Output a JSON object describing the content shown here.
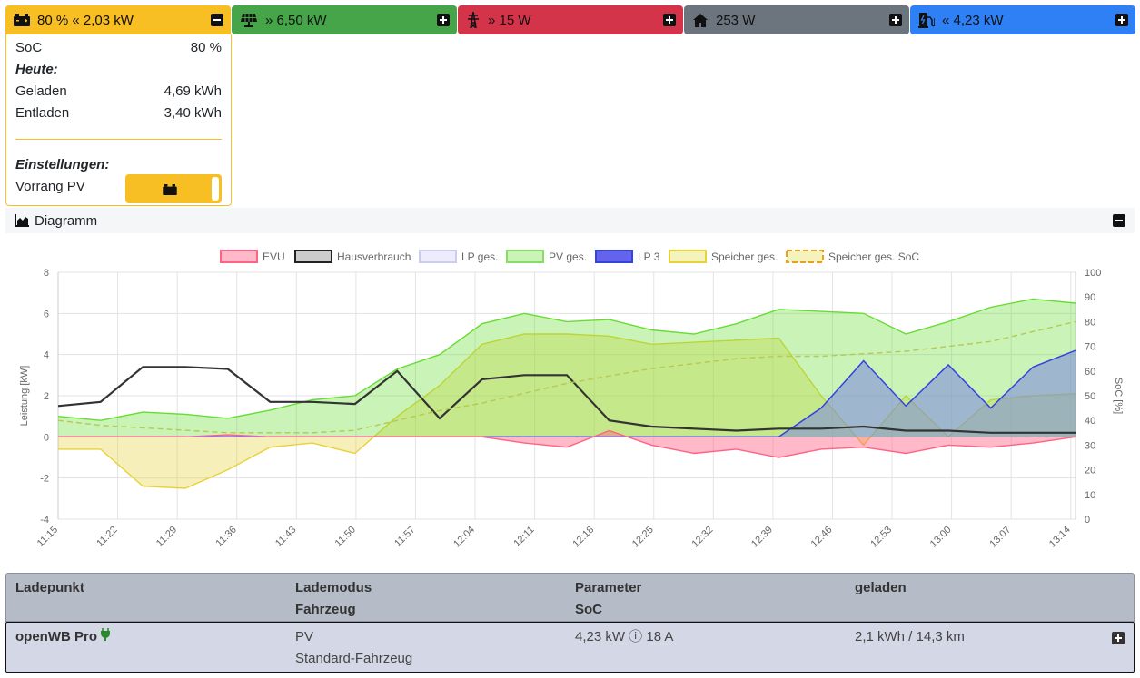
{
  "tiles": {
    "battery": {
      "value": "80 % « 2,03 kW",
      "color": "#f7bf23"
    },
    "pv": {
      "value": "» 6,50 kW",
      "color": "#45a548"
    },
    "grid": {
      "value": "» 15 W",
      "color": "#d43449"
    },
    "house": {
      "value": "253 W",
      "color": "#6c757d"
    },
    "charge": {
      "value": "« 4,23 kW",
      "color": "#2f7ff5"
    }
  },
  "battery_panel": {
    "soc_label": "SoC",
    "soc_value": "80 %",
    "today_heading": "Heute:",
    "charged_label": "Geladen",
    "charged_value": "4,69 kWh",
    "discharged_label": "Entladen",
    "discharged_value": "3,40 kWh",
    "settings_heading": "Einstellungen:",
    "priority_label": "Vorrang PV",
    "priority_toggle_on": true
  },
  "diagram": {
    "title": "Diagramm"
  },
  "chart_data": {
    "type": "area",
    "legend": [
      "EVU",
      "Hausverbrauch",
      "LP ges.",
      "PV ges.",
      "LP 3",
      "Speicher ges.",
      "Speicher ges. SoC"
    ],
    "legend_position": "top",
    "grid": true,
    "ylabel": "Leistung [kW]",
    "y2label": "SoC [%]",
    "ylim": [
      -4,
      8
    ],
    "y2lim": [
      0,
      100
    ],
    "yticks": [
      "8",
      "6",
      "4",
      "2",
      "0",
      "-2",
      "-4"
    ],
    "y2ticks": [
      "100",
      "90",
      "80",
      "70",
      "60",
      "50",
      "40",
      "30",
      "20",
      "10",
      "0"
    ],
    "x_ticks": [
      "11:15",
      "11:22",
      "11:29",
      "11:36",
      "11:43",
      "11:50",
      "11:57",
      "12:04",
      "12:11",
      "12:18",
      "12:25",
      "12:32",
      "12:39",
      "12:46",
      "12:53",
      "13:00",
      "13:07",
      "13:14"
    ],
    "x_minutes": [
      0,
      5,
      10,
      15,
      20,
      25,
      30,
      35,
      40,
      45,
      50,
      55,
      60,
      65,
      70,
      75,
      80,
      85,
      90,
      95,
      100,
      105,
      110,
      115,
      120
    ],
    "series": [
      {
        "name": "EVU",
        "color": "#ff6384",
        "values": [
          0,
          0,
          0,
          0,
          0.1,
          0,
          0,
          0,
          0,
          0,
          0,
          -0.3,
          -0.5,
          0.3,
          -0.4,
          -0.8,
          -0.6,
          -1.0,
          -0.6,
          -0.5,
          -0.8,
          -0.4,
          -0.5,
          -0.3,
          0
        ]
      },
      {
        "name": "Hausverbrauch",
        "color": "#333333",
        "values": [
          1.5,
          1.7,
          3.4,
          3.4,
          3.3,
          1.7,
          1.7,
          1.6,
          3.2,
          0.9,
          2.8,
          3.0,
          3.0,
          0.8,
          0.5,
          0.4,
          0.3,
          0.4,
          0.4,
          0.5,
          0.3,
          0.3,
          0.2,
          0.2,
          0.2
        ]
      },
      {
        "name": "LP ges.",
        "color": "#6c5ce7",
        "values": [
          0,
          0,
          0,
          0,
          0,
          0,
          0,
          0,
          0,
          0,
          0,
          0,
          0,
          0,
          0,
          0,
          0,
          0,
          1.4,
          3.7,
          1.5,
          3.5,
          1.4,
          3.4,
          4.2
        ]
      },
      {
        "name": "PV ges.",
        "color": "#66dd33",
        "values": [
          1.0,
          0.8,
          1.2,
          1.1,
          0.9,
          1.3,
          1.8,
          2.0,
          3.3,
          4.0,
          5.5,
          6.0,
          5.6,
          5.7,
          5.2,
          5.0,
          5.5,
          6.2,
          6.1,
          6.0,
          5.0,
          5.6,
          6.3,
          6.7,
          6.5
        ]
      },
      {
        "name": "LP 3",
        "color": "#3344dd",
        "values": [
          0,
          0,
          0,
          0,
          0,
          0,
          0,
          0,
          0,
          0,
          0,
          0,
          0,
          0,
          0,
          0,
          0,
          0,
          1.4,
          3.7,
          1.5,
          3.5,
          1.4,
          3.4,
          4.2
        ]
      },
      {
        "name": "Speicher ges.",
        "color": "#e8d23a",
        "values": [
          -0.6,
          -0.6,
          -2.4,
          -2.5,
          -1.6,
          -0.5,
          -0.3,
          -0.8,
          1.0,
          2.5,
          4.5,
          5.0,
          5.0,
          4.9,
          4.5,
          4.6,
          4.7,
          4.8,
          2.0,
          -0.4,
          2.0,
          0,
          1.8,
          2.0,
          2.1
        ]
      },
      {
        "name": "Speicher ges. SoC",
        "color": "#e8a020",
        "values": [
          40,
          38,
          37,
          36,
          35,
          35,
          35,
          36,
          40,
          44,
          47,
          51,
          55,
          58,
          61,
          63,
          65,
          66,
          66,
          67,
          68,
          70,
          72,
          76,
          80
        ]
      }
    ]
  },
  "table": {
    "headers": {
      "col1": "Ladepunkt",
      "col2a": "Lademodus",
      "col2b": "Fahrzeug",
      "col3a": "Parameter",
      "col3b": "SoC",
      "col4": "geladen"
    },
    "rows": [
      {
        "name": "openWB Pro",
        "mode": "PV",
        "vehicle": "Standard-Fahrzeug",
        "params": "4,23 kW ⓘ 18 A",
        "charged": "2,1 kWh / 14,3 km"
      }
    ]
  }
}
